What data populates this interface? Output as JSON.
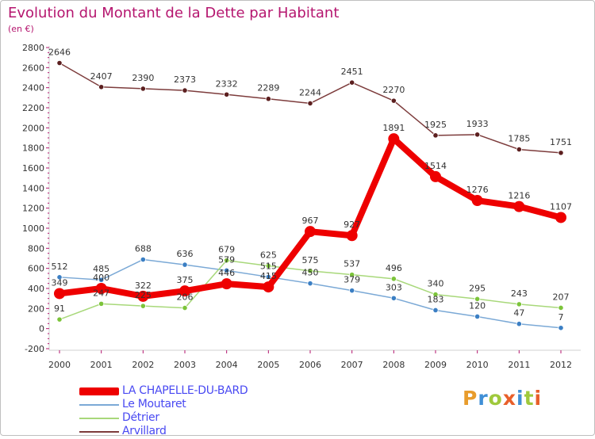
{
  "title": "Evolution du Montant de la Dette par Habitant",
  "subtitle": "(en €)",
  "logo": {
    "letters": [
      "P",
      "r",
      "o",
      "x",
      "i",
      "t",
      "i"
    ],
    "colors": [
      "#e89c2c",
      "#3f8fd6",
      "#9fc93c",
      "#e85f2a",
      "#3f8fd6",
      "#9fc93c",
      "#e85f2a"
    ]
  },
  "chart_data": {
    "type": "line",
    "x": [
      "2000",
      "2001",
      "2002",
      "2003",
      "2004",
      "2005",
      "2006",
      "2007",
      "2008",
      "2009",
      "2010",
      "2011",
      "2012"
    ],
    "ylim": [
      -200,
      2800
    ],
    "yticks": [
      "-200",
      "0",
      "200",
      "400",
      "600",
      "800",
      "1000",
      "1200",
      "1400",
      "1600",
      "1800",
      "2000",
      "2200",
      "2400",
      "2600",
      "2800"
    ],
    "grid": false,
    "legend_position": "bottom-left",
    "series": [
      {
        "name": "LA CHAPELLE-DU-BARD",
        "color": "#ee0000",
        "emphasis": true,
        "values": [
          349,
          400,
          322,
          375,
          446,
          415,
          967,
          927,
          1891,
          1514,
          1276,
          1216,
          1107
        ],
        "labels": [
          "349",
          "400",
          "322",
          "375",
          "446",
          "415",
          "967",
          "927",
          "1891",
          "1514",
          "1276",
          "1216",
          "1107"
        ]
      },
      {
        "name": "Le Moutaret",
        "color": "#7ba9d6",
        "point_color": "#3b7fc4",
        "values": [
          512,
          485,
          688,
          636,
          579,
          515,
          450,
          379,
          303,
          183,
          120,
          47,
          7
        ],
        "labels": [
          "512",
          "485",
          "688",
          "636",
          "579",
          "515",
          "450",
          "379",
          "303",
          "183",
          "120",
          "47",
          "7"
        ]
      },
      {
        "name": "Détrier",
        "color": "#a8d87a",
        "point_color": "#7cc43a",
        "values": [
          91,
          247,
          225,
          206,
          679,
          625,
          575,
          537,
          496,
          340,
          295,
          243,
          207
        ],
        "labels": [
          "91",
          "247",
          "225",
          "206",
          "679",
          "625",
          "575",
          "537",
          "496",
          "340",
          "295",
          "243",
          "207"
        ]
      },
      {
        "name": "Arvillard",
        "color": "#7d3c3c",
        "point_color": "#5c1f1f",
        "values": [
          2646,
          2407,
          2390,
          2373,
          2332,
          2289,
          2244,
          2451,
          2270,
          1925,
          1933,
          1785,
          1751
        ],
        "labels": [
          "2646",
          "2407",
          "2390",
          "2373",
          "2332",
          "2289",
          "2244",
          "2451",
          "2270",
          "1925",
          "1933",
          "1785",
          "1751"
        ]
      }
    ]
  }
}
